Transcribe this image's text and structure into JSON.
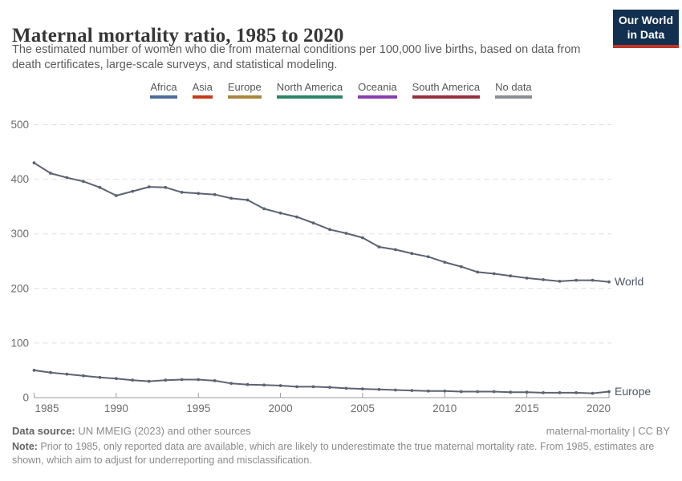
{
  "header": {
    "title": "Maternal mortality ratio, 1985 to 2020",
    "subtitle": "The estimated number of women who die from maternal conditions per 100,000 live births, based on data from death certificates, large-scale surveys, and statistical modeling.",
    "logo": {
      "line1": "Our World",
      "line2": "in Data",
      "bg_color": "#12304F",
      "accent_color": "#C13628"
    }
  },
  "legend": {
    "items": [
      {
        "label": "Africa",
        "color": "#4C6A9D"
      },
      {
        "label": "Asia",
        "color": "#C7391B"
      },
      {
        "label": "Europe",
        "color": "#A9853F"
      },
      {
        "label": "North America",
        "color": "#2C8465"
      },
      {
        "label": "Oceania",
        "color": "#8A3DAB"
      },
      {
        "label": "South America",
        "color": "#94303E"
      },
      {
        "label": "No data",
        "color": "#8B8E94"
      }
    ]
  },
  "chart_data": {
    "type": "line",
    "title": "Maternal mortality ratio, 1985 to 2020",
    "xlabel": "",
    "ylabel": "",
    "ylim": [
      0,
      500
    ],
    "yticks": [
      0,
      100,
      200,
      300,
      400,
      500
    ],
    "xticks": [
      1985,
      1990,
      1995,
      2000,
      2005,
      2010,
      2015,
      2020
    ],
    "grid": "horizontal-dashed",
    "legend_position": "top",
    "line_color": "#5B6373",
    "grid_color": "#DEDEDE",
    "axis_color": "#9A9A9A",
    "x": [
      1985,
      1986,
      1987,
      1988,
      1989,
      1990,
      1991,
      1992,
      1993,
      1994,
      1995,
      1996,
      1997,
      1998,
      1999,
      2000,
      2001,
      2002,
      2003,
      2004,
      2005,
      2006,
      2007,
      2008,
      2009,
      2010,
      2011,
      2012,
      2013,
      2014,
      2015,
      2016,
      2017,
      2018,
      2019,
      2020
    ],
    "series": [
      {
        "name": "World",
        "values": [
          430,
          411,
          403,
          396,
          385,
          370,
          378,
          386,
          385,
          376,
          374,
          372,
          365,
          362,
          346,
          338,
          331,
          320,
          308,
          301,
          293,
          276,
          271,
          264,
          258,
          248,
          240,
          230,
          227,
          223,
          219,
          216,
          213,
          215,
          215,
          212
        ]
      },
      {
        "name": "Europe",
        "values": [
          50,
          46,
          43,
          40,
          37,
          35,
          32,
          30,
          32,
          33,
          33,
          31,
          26,
          24,
          23,
          22,
          20,
          20,
          19,
          17,
          16,
          15,
          14,
          13,
          12,
          12,
          11,
          11,
          11,
          10,
          10,
          9,
          9,
          9,
          8,
          11
        ]
      }
    ]
  },
  "footer": {
    "datasource_label": "Data source:",
    "datasource_text": " UN MMEIG (2023) and other sources",
    "license_text": "maternal-mortality | CC BY",
    "note_label": "Note:",
    "note_text": " Prior to 1985, only reported data are available, which are likely to underestimate the true maternal mortality rate. From 1985, estimates are shown, which aim to adjust for underreporting and misclassification."
  }
}
